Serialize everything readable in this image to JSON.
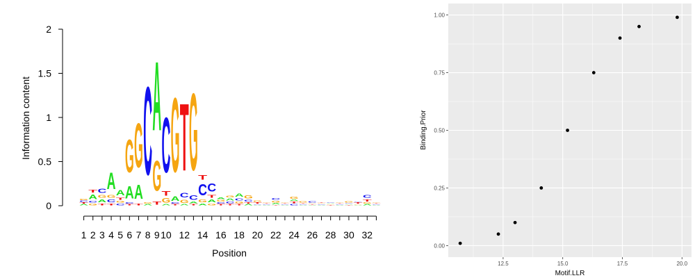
{
  "colors": {
    "A": "#22dd22",
    "C": "#1111ee",
    "G": "#f5a511",
    "T": "#ee1111",
    "panel_bg": "#ebebeb",
    "grid": "#ffffff",
    "point": "#000000"
  },
  "chart_data": [
    {
      "type": "sequence-logo",
      "xlabel": "Position",
      "ylabel": "Information content",
      "ylim": [
        0,
        2
      ],
      "y_ticks": [
        "0",
        "0.5",
        "1",
        "1.5",
        "2"
      ],
      "x_tick_labels": [
        "1",
        "2",
        "3",
        "4",
        "5",
        "6",
        "7",
        "8",
        "9",
        "10",
        "12",
        "14",
        "16",
        "18",
        "20",
        "22",
        "24",
        "26",
        "28",
        "30",
        "32"
      ],
      "positions": [
        {
          "pos": 1,
          "letters": [
            [
              "A",
              0.02
            ],
            [
              "T",
              0.02
            ],
            [
              "C",
              0.02
            ],
            [
              "G",
              0.02
            ]
          ]
        },
        {
          "pos": 2,
          "letters": [
            [
              "G",
              0.03
            ],
            [
              "C",
              0.03
            ],
            [
              "A",
              0.08
            ],
            [
              "T",
              0.05
            ]
          ]
        },
        {
          "pos": 3,
          "letters": [
            [
              "T",
              0.03
            ],
            [
              "A",
              0.05
            ],
            [
              "G",
              0.05
            ],
            [
              "C",
              0.07
            ]
          ]
        },
        {
          "pos": 4,
          "letters": [
            [
              "T",
              0.03
            ],
            [
              "C",
              0.05
            ],
            [
              "G",
              0.05
            ],
            [
              "A",
              0.3
            ]
          ]
        },
        {
          "pos": 5,
          "letters": [
            [
              "C",
              0.03
            ],
            [
              "G",
              0.03
            ],
            [
              "T",
              0.04
            ],
            [
              "A",
              0.1
            ]
          ]
        },
        {
          "pos": 6,
          "letters": [
            [
              "T",
              0.02
            ],
            [
              "C",
              0.02
            ],
            [
              "A",
              0.22
            ],
            [
              "G",
              0.6
            ]
          ]
        },
        {
          "pos": 7,
          "letters": [
            [
              "T",
              0.03
            ],
            [
              "A",
              0.25
            ],
            [
              "G",
              0.8
            ]
          ]
        },
        {
          "pos": 8,
          "letters": [
            [
              "A",
              0.02
            ],
            [
              "G",
              0.02
            ],
            [
              "C",
              1.6
            ]
          ]
        },
        {
          "pos": 9,
          "letters": [
            [
              "T",
              0.06
            ],
            [
              "G",
              0.55
            ],
            [
              "A",
              1.25
            ]
          ]
        },
        {
          "pos": 10,
          "letters": [
            [
              "A",
              0.02
            ],
            [
              "G",
              0.08
            ],
            [
              "T",
              0.08
            ],
            [
              "C",
              1.0
            ]
          ]
        },
        {
          "pos": 11,
          "letters": [
            [
              "T",
              0.02
            ],
            [
              "C",
              0.02
            ],
            [
              "A",
              0.08
            ],
            [
              "G",
              1.35
            ]
          ]
        },
        {
          "pos": 12,
          "letters": [
            [
              "A",
              0.02
            ],
            [
              "G",
              0.06
            ],
            [
              "C",
              0.08
            ],
            [
              "T",
              1.22
            ]
          ]
        },
        {
          "pos": 13,
          "letters": [
            [
              "T",
              0.02
            ],
            [
              "A",
              0.03
            ],
            [
              "C",
              0.08
            ],
            [
              "G",
              1.4
            ]
          ]
        },
        {
          "pos": 14,
          "letters": [
            [
              "A",
              0.03
            ],
            [
              "G",
              0.05
            ],
            [
              "C",
              0.2
            ],
            [
              "T",
              0.08
            ]
          ]
        },
        {
          "pos": 15,
          "letters": [
            [
              "G",
              0.03
            ],
            [
              "A",
              0.05
            ],
            [
              "T",
              0.05
            ],
            [
              "C",
              0.15
            ]
          ]
        },
        {
          "pos": 16,
          "letters": [
            [
              "T",
              0.02
            ],
            [
              "C",
              0.02
            ],
            [
              "G",
              0.03
            ],
            [
              "A",
              0.03
            ]
          ]
        },
        {
          "pos": 17,
          "letters": [
            [
              "T",
              0.02
            ],
            [
              "C",
              0.03
            ],
            [
              "A",
              0.04
            ],
            [
              "G",
              0.03
            ]
          ]
        },
        {
          "pos": 18,
          "letters": [
            [
              "T",
              0.02
            ],
            [
              "G",
              0.03
            ],
            [
              "C",
              0.04
            ],
            [
              "A",
              0.06
            ]
          ]
        },
        {
          "pos": 19,
          "letters": [
            [
              "A",
              0.02
            ],
            [
              "T",
              0.02
            ],
            [
              "C",
              0.03
            ],
            [
              "G",
              0.06
            ]
          ]
        },
        {
          "pos": 20,
          "letters": [
            [
              "A",
              0.01
            ],
            [
              "C",
              0.01
            ],
            [
              "T",
              0.02
            ],
            [
              "G",
              0.02
            ]
          ]
        },
        {
          "pos": 21,
          "letters": [
            [
              "A",
              0.01
            ],
            [
              "C",
              0.01
            ],
            [
              "T",
              0.01
            ],
            [
              "G",
              0.01
            ]
          ]
        },
        {
          "pos": 22,
          "letters": [
            [
              "T",
              0.01
            ],
            [
              "A",
              0.02
            ],
            [
              "G",
              0.03
            ],
            [
              "C",
              0.03
            ]
          ]
        },
        {
          "pos": 23,
          "letters": [
            [
              "A",
              0.01
            ],
            [
              "C",
              0.01
            ],
            [
              "T",
              0.01
            ],
            [
              "G",
              0.01
            ]
          ]
        },
        {
          "pos": 24,
          "letters": [
            [
              "C",
              0.02
            ],
            [
              "T",
              0.03
            ],
            [
              "A",
              0.02
            ],
            [
              "G",
              0.04
            ]
          ]
        },
        {
          "pos": 25,
          "letters": [
            [
              "A",
              0.01
            ],
            [
              "C",
              0.01
            ],
            [
              "T",
              0.01
            ],
            [
              "G",
              0.02
            ]
          ]
        },
        {
          "pos": 26,
          "letters": [
            [
              "A",
              0.01
            ],
            [
              "T",
              0.01
            ],
            [
              "G",
              0.01
            ],
            [
              "C",
              0.02
            ]
          ]
        },
        {
          "pos": 27,
          "letters": [
            [
              "A",
              0.01
            ],
            [
              "C",
              0.01
            ],
            [
              "G",
              0.01
            ],
            [
              "T",
              0.01
            ]
          ]
        },
        {
          "pos": 28,
          "letters": [
            [
              "T",
              0.01
            ],
            [
              "G",
              0.01
            ],
            [
              "A",
              0.01
            ],
            [
              "C",
              0.01
            ]
          ]
        },
        {
          "pos": 29,
          "letters": [
            [
              "A",
              0.01
            ],
            [
              "C",
              0.01
            ],
            [
              "T",
              0.01
            ],
            [
              "G",
              0.01
            ]
          ]
        },
        {
          "pos": 30,
          "letters": [
            [
              "T",
              0.01
            ],
            [
              "A",
              0.01
            ],
            [
              "C",
              0.01
            ],
            [
              "G",
              0.02
            ]
          ]
        },
        {
          "pos": 31,
          "letters": [
            [
              "A",
              0.01
            ],
            [
              "G",
              0.01
            ],
            [
              "T",
              0.02
            ],
            [
              "C",
              0.01
            ]
          ]
        },
        {
          "pos": 32,
          "letters": [
            [
              "A",
              0.02
            ],
            [
              "G",
              0.02
            ],
            [
              "T",
              0.04
            ],
            [
              "C",
              0.05
            ]
          ]
        },
        {
          "pos": 33,
          "letters": [
            [
              "A",
              0.01
            ],
            [
              "C",
              0.01
            ],
            [
              "T",
              0.01
            ],
            [
              "G",
              0.01
            ]
          ]
        }
      ]
    },
    {
      "type": "scatter",
      "xlabel": "Motif.LLR",
      "ylabel": "Binding.Prior",
      "xlim": [
        10.2,
        20.4
      ],
      "ylim": [
        -0.05,
        1.05
      ],
      "x_ticks": [
        12.5,
        15.0,
        17.5,
        20.0
      ],
      "x_tick_labels": [
        "12.5",
        "15.0",
        "17.5",
        "20.0"
      ],
      "y_ticks": [
        0.0,
        0.25,
        0.5,
        0.75,
        1.0
      ],
      "y_tick_labels": [
        "0.00",
        "0.25",
        "0.50",
        "0.75",
        "1.00"
      ],
      "grid": true,
      "points": [
        {
          "x": 10.7,
          "y": 0.01
        },
        {
          "x": 12.3,
          "y": 0.05
        },
        {
          "x": 13.0,
          "y": 0.1
        },
        {
          "x": 14.1,
          "y": 0.25
        },
        {
          "x": 15.2,
          "y": 0.5
        },
        {
          "x": 16.3,
          "y": 0.75
        },
        {
          "x": 17.4,
          "y": 0.9
        },
        {
          "x": 18.2,
          "y": 0.95
        },
        {
          "x": 19.8,
          "y": 0.99
        }
      ]
    }
  ]
}
